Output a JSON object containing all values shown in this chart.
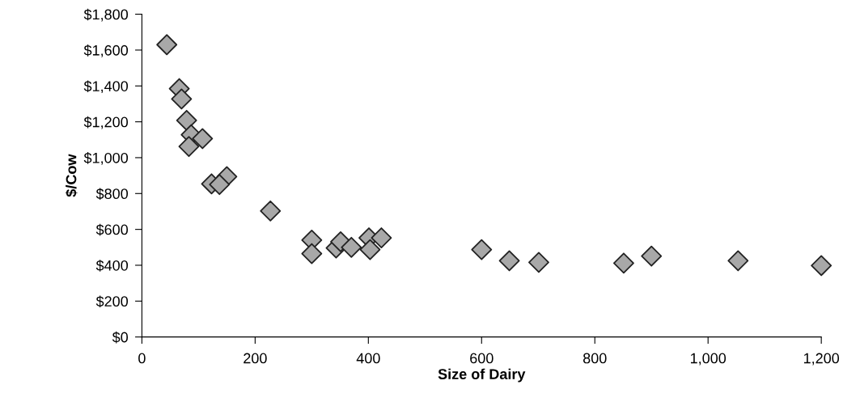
{
  "chart_data": {
    "type": "scatter",
    "xlabel": "Size of Dairy",
    "ylabel": "$/Cow",
    "x": [
      44,
      66,
      70,
      79,
      87,
      107,
      83,
      123,
      150,
      137,
      227,
      300,
      300,
      343,
      351,
      370,
      401,
      403,
      423,
      600,
      649,
      701,
      851,
      900,
      1053,
      1200
    ],
    "series": [
      {
        "color": "#a8a8a8",
        "values": [
          1630,
          1385,
          1327,
          1208,
          1128,
          1106,
          1062,
          854,
          894,
          850,
          703,
          540,
          465,
          496,
          531,
          500,
          553,
          487,
          553,
          487,
          425,
          416,
          412,
          451,
          425,
          398
        ]
      }
    ],
    "marker": "diamond",
    "grid": false,
    "legend": false,
    "xlim": [
      0,
      1200
    ],
    "xticks": [
      0,
      200,
      400,
      600,
      800,
      {
        "value": 1000,
        "label": "1,000"
      },
      {
        "value": 1200,
        "label": "1,200"
      }
    ],
    "ylim": [
      0,
      1800
    ],
    "yticks": [
      {
        "value": 0,
        "label": "$0"
      },
      {
        "value": 200,
        "label": "$200"
      },
      {
        "value": 400,
        "label": "$400"
      },
      {
        "value": 600,
        "label": "$600"
      },
      {
        "value": 800,
        "label": "$800"
      },
      {
        "value": 1000,
        "label": "$1,000"
      },
      {
        "value": 1200,
        "label": "$1,200"
      },
      {
        "value": 1400,
        "label": "$1,400"
      },
      {
        "value": 1600,
        "label": "$1,600"
      },
      {
        "value": 1800,
        "label": "$1,800"
      }
    ]
  }
}
